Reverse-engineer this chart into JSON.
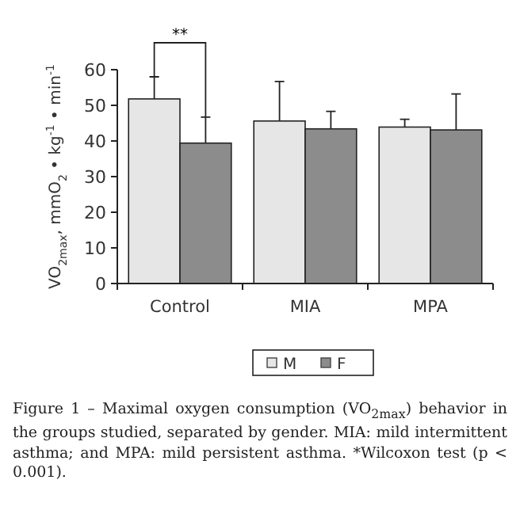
{
  "chart_data": {
    "type": "bar",
    "ylabel": "VO$_{2max}$, mmO$_{2}$ • kg$^{-1}$ • min$^{-1}$",
    "categories": [
      "Control",
      "MIA",
      "MPA"
    ],
    "series": [
      {
        "name": "M",
        "color": "#e6e6e6",
        "values": [
          51.8,
          45.6,
          43.9
        ],
        "errors": [
          [
            51.8,
            58.0
          ],
          [
            45.6,
            56.7
          ],
          [
            43.9,
            46.1
          ]
        ]
      },
      {
        "name": "F",
        "color": "#8c8c8c",
        "values": [
          39.4,
          43.4,
          43.1
        ],
        "errors": [
          [
            39.4,
            46.7
          ],
          [
            43.4,
            48.3
          ],
          [
            43.1,
            53.2
          ]
        ]
      }
    ],
    "ylim": [
      0,
      60
    ],
    "yticks": [
      0,
      10,
      20,
      30,
      40,
      50,
      60
    ],
    "grid": false,
    "legend": "bottom",
    "annotations": [
      "**",
      "Figure 1 – Maximal oxygen consumption (VO$_{2max}$) behavior in the groups studied, separated by gender. MIA: mild intermittent asthma; and MPA: mild persistent asthma. *Wilcoxon test (p < 0.001)."
    ]
  }
}
